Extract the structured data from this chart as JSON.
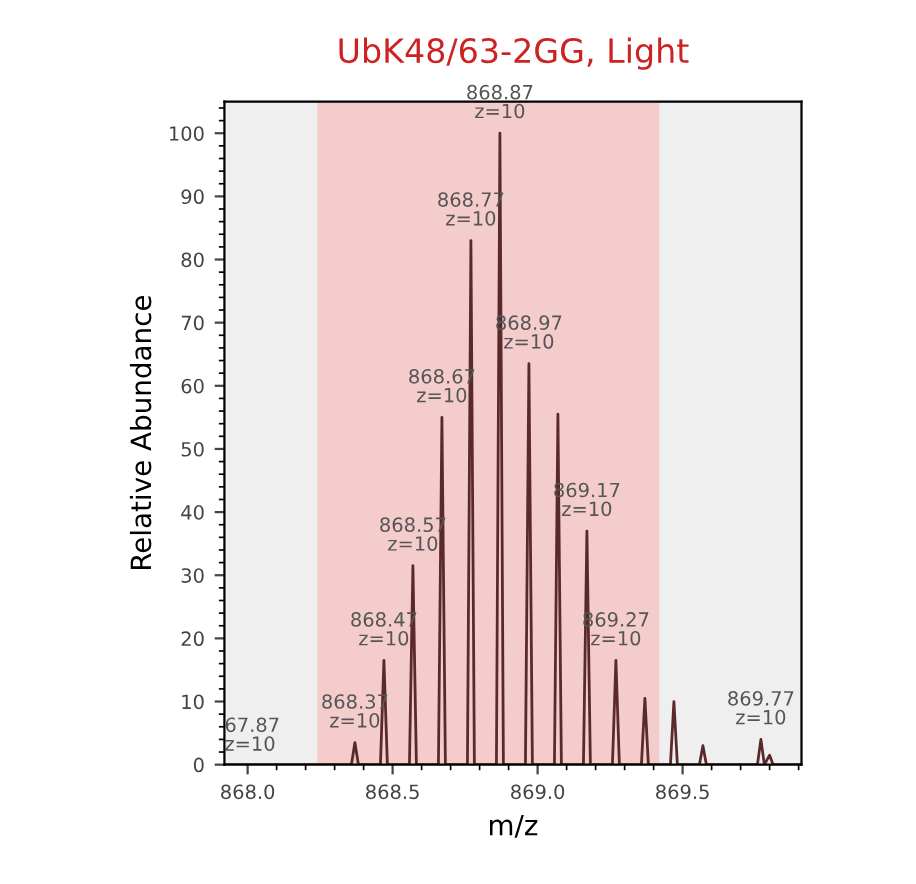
{
  "chart_data": {
    "type": "line",
    "title": "UbK48/63-2GG, Light",
    "xlabel": "m/z",
    "ylabel": "Relative Abundance",
    "xlim": [
      867.92,
      869.91
    ],
    "ylim": [
      0,
      105
    ],
    "xticks": [
      {
        "value": 868.0,
        "label": "868.0"
      },
      {
        "value": 868.5,
        "label": "868.5"
      },
      {
        "value": 869.0,
        "label": "869.0"
      },
      {
        "value": 869.5,
        "label": "869.5"
      }
    ],
    "yticks": [
      0,
      10,
      20,
      30,
      40,
      50,
      60,
      70,
      80,
      90,
      100
    ],
    "series": [
      {
        "color": "#5a2a2a",
        "x": [
          867.92,
          868.358,
          868.37,
          868.382,
          868.458,
          868.47,
          868.482,
          868.558,
          868.57,
          868.582,
          868.658,
          868.67,
          868.682,
          868.758,
          868.77,
          868.782,
          868.858,
          868.87,
          868.882,
          868.958,
          868.97,
          868.982,
          869.058,
          869.07,
          869.082,
          869.158,
          869.17,
          869.182,
          869.258,
          869.27,
          869.282,
          869.358,
          869.37,
          869.382,
          869.458,
          869.47,
          869.482,
          869.558,
          869.57,
          869.582,
          869.758,
          869.77,
          869.782,
          869.8,
          869.812,
          869.91
        ],
        "values": [
          0,
          0,
          3.5,
          0,
          0,
          16.5,
          0,
          0,
          31.5,
          0,
          0,
          55,
          0,
          0,
          83,
          0,
          0,
          100,
          0,
          0,
          63.5,
          0,
          0,
          55.5,
          0,
          0,
          37,
          0,
          0,
          16.5,
          0,
          0,
          10.5,
          0,
          0,
          10,
          0,
          0,
          3,
          0,
          0,
          4,
          0,
          1.5,
          0,
          0
        ]
      }
    ],
    "bands": [
      {
        "axis": "x",
        "from": 868.24,
        "to": 869.42,
        "color": "#f4cccc"
      }
    ],
    "annotations": [
      "67.87\nz=10",
      {
        "text": "868.37\nz=10",
        "x": 868.37,
        "y": 3.5
      },
      {
        "text": "868.47\nz=10",
        "x": 868.47,
        "y": 16.5
      },
      {
        "text": "868.57\nz=10",
        "x": 868.57,
        "y": 31.5
      },
      {
        "text": "868.67\nz=10",
        "x": 868.67,
        "y": 55
      },
      {
        "text": "868.77\nz=10",
        "x": 868.77,
        "y": 83
      },
      {
        "text": "868.87\nz=10",
        "x": 868.87,
        "y": 100
      },
      {
        "text": "868.97\nz=10",
        "x": 868.97,
        "y": 63.5
      },
      {
        "text": "869.17\nz=10",
        "x": 869.17,
        "y": 37
      },
      {
        "text": "869.27\nz=10",
        "x": 869.27,
        "y": 16.5
      },
      {
        "text": "869.77\nz=10",
        "x": 869.77,
        "y": 4
      }
    ],
    "grid": false,
    "legend": false
  }
}
